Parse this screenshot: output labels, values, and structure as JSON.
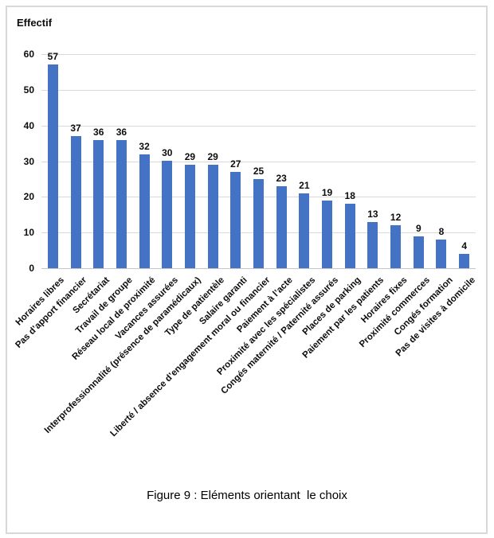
{
  "figure": {
    "caption": "Figure 9 : Eléments orientant  le choix"
  },
  "chart_data": {
    "type": "bar",
    "title": "",
    "xlabel": "",
    "ylabel": "Effectif",
    "ylim": [
      0,
      60
    ],
    "yticks": [
      0,
      10,
      20,
      30,
      40,
      50,
      60
    ],
    "grid": true,
    "legend": false,
    "data_labels": true,
    "bar_color": "#4472C4",
    "gridline_color": "#D9D9D9",
    "categories": [
      "Horaires libres",
      "Pas d’apport financier",
      "Secrétariat",
      "Travail de groupe",
      "Réseau local de proximité",
      "Vacances assurées",
      "Interprofessionnalité (présence de paramédicaux)",
      "Type de patientèle",
      "Salaire garanti",
      "Liberté / absence d’engagement moral ou financier",
      "Paiement à l’acte",
      "Proximité avec les spécialistes",
      "Congés maternité / Paternité assurés",
      "Places de parking",
      "Paiement par les patients",
      "Horaires fixes",
      "Proximité commerces",
      "Congés formation",
      "Pas de visites à domicile"
    ],
    "values": [
      57,
      37,
      36,
      36,
      32,
      30,
      29,
      29,
      27,
      25,
      23,
      21,
      19,
      18,
      13,
      12,
      9,
      8,
      4
    ]
  }
}
